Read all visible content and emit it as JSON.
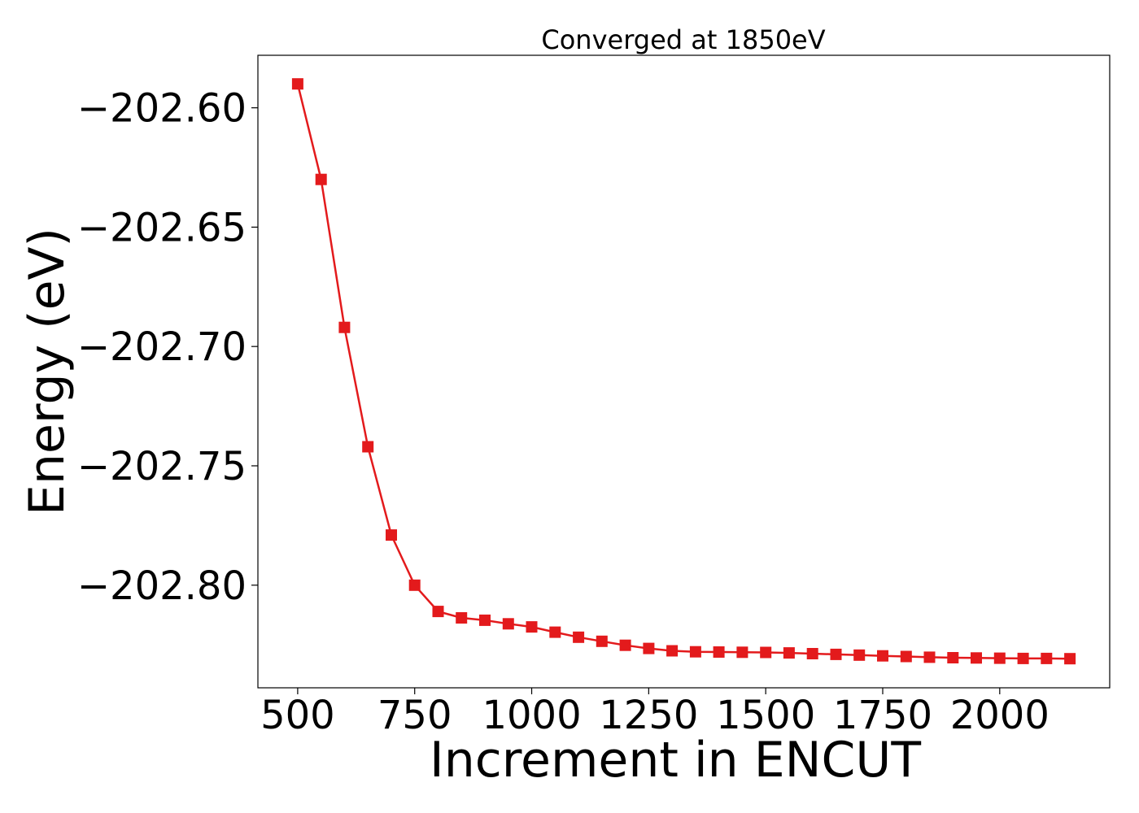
{
  "chart_data": {
    "type": "line",
    "title": "Converged at 1850eV",
    "xlabel": "Increment in ENCUT",
    "ylabel": "Energy (eV)",
    "xlim": [
      415,
      2235
    ],
    "ylim": [
      -202.843,
      -202.578
    ],
    "x_ticks": [
      500,
      750,
      1000,
      1250,
      1500,
      1750,
      2000
    ],
    "x_tick_labels": [
      "500",
      "750",
      "1000",
      "1250",
      "1500",
      "1750",
      "2000"
    ],
    "y_ticks": [
      -202.6,
      -202.65,
      -202.7,
      -202.75,
      -202.8
    ],
    "y_tick_labels": [
      "−202.60",
      "−202.65",
      "−202.70",
      "−202.75",
      "−202.80"
    ],
    "grid": false,
    "marker": "square",
    "color": "#e31a1c",
    "x": [
      500,
      550,
      600,
      650,
      700,
      750,
      800,
      850,
      900,
      950,
      1000,
      1050,
      1100,
      1150,
      1200,
      1250,
      1300,
      1350,
      1400,
      1450,
      1500,
      1550,
      1600,
      1650,
      1700,
      1750,
      1800,
      1850,
      1900,
      1950,
      2000,
      2050,
      2100,
      2150
    ],
    "values": [
      -202.59,
      -202.63,
      -202.692,
      -202.742,
      -202.779,
      -202.8,
      -202.811,
      -202.8137,
      -202.8147,
      -202.8162,
      -202.8175,
      -202.8197,
      -202.8218,
      -202.8235,
      -202.8252,
      -202.8265,
      -202.8275,
      -202.8279,
      -202.828,
      -202.8281,
      -202.8282,
      -202.8284,
      -202.8287,
      -202.829,
      -202.8293,
      -202.8296,
      -202.8299,
      -202.8302,
      -202.8304,
      -202.8305,
      -202.8306,
      -202.8307,
      -202.8307,
      -202.8308
    ]
  }
}
